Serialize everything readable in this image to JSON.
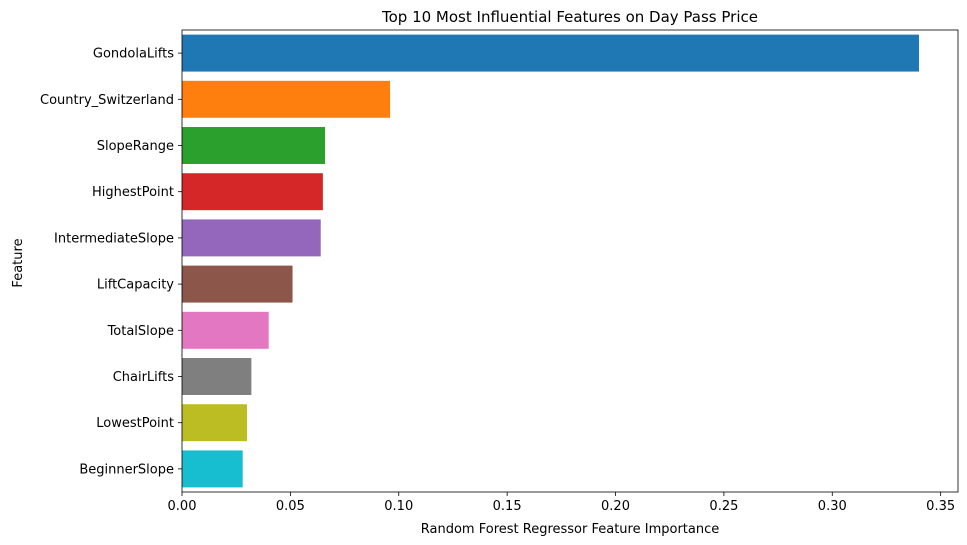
{
  "chart_data": {
    "type": "bar",
    "orientation": "horizontal",
    "title": "Top 10 Most Influential Features on Day Pass Price",
    "xlabel": "Random Forest Regressor Feature Importance",
    "ylabel": "Feature",
    "xlim": [
      0,
      0.358
    ],
    "xticks": [
      0.0,
      0.05,
      0.1,
      0.15,
      0.2,
      0.25,
      0.3,
      0.35
    ],
    "xtick_labels": [
      "0.00",
      "0.05",
      "0.10",
      "0.15",
      "0.20",
      "0.25",
      "0.30",
      "0.35"
    ],
    "grid": false,
    "categories": [
      "GondolaLifts",
      "Country_Switzerland",
      "SlopeRange",
      "HighestPoint",
      "IntermediateSlope",
      "LiftCapacity",
      "TotalSlope",
      "ChairLifts",
      "LowestPoint",
      "BeginnerSlope"
    ],
    "values": [
      0.34,
      0.096,
      0.066,
      0.065,
      0.064,
      0.051,
      0.04,
      0.032,
      0.03,
      0.028
    ],
    "colors": [
      "#1f77b4",
      "#ff7f0e",
      "#2ca02c",
      "#d62728",
      "#9467bd",
      "#8c564b",
      "#e377c2",
      "#7f7f7f",
      "#bcbd22",
      "#17becf"
    ]
  }
}
